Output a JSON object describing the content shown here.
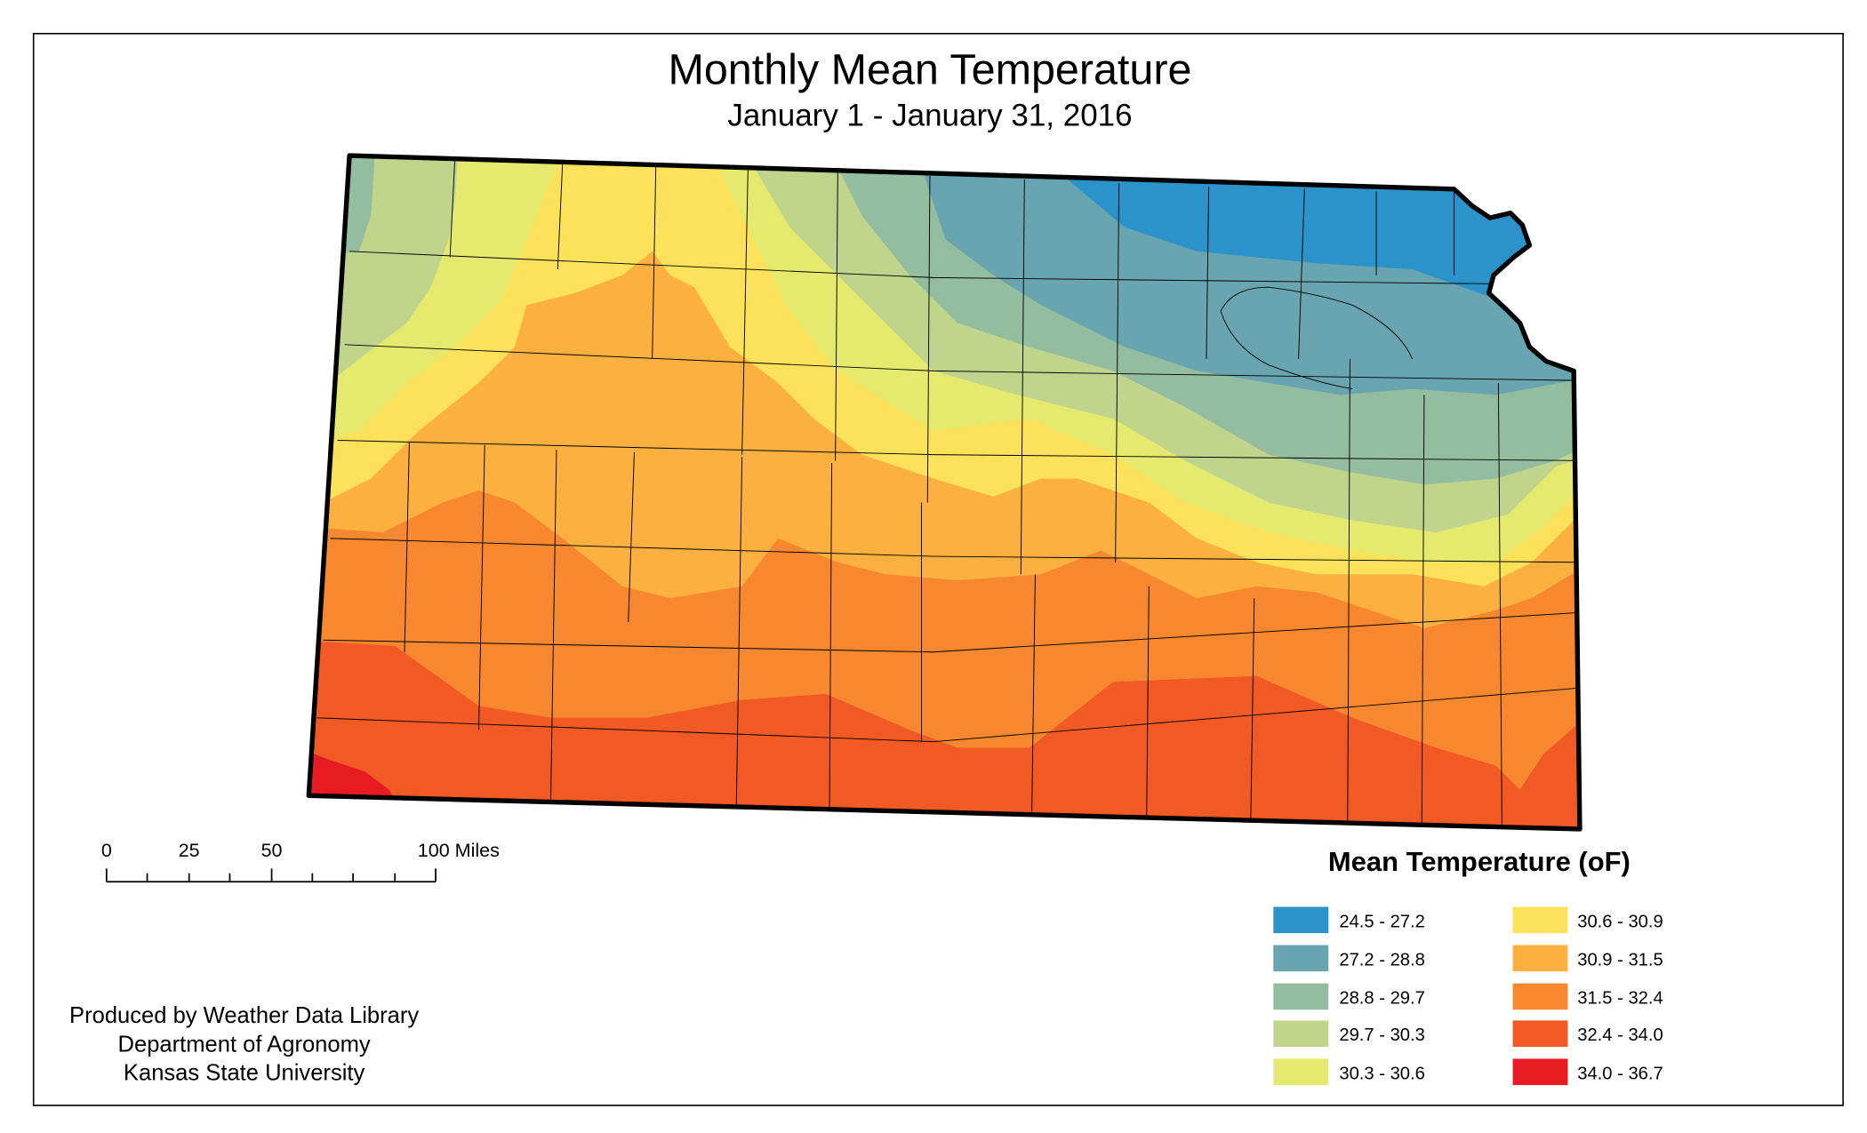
{
  "title": "Monthly Mean Temperature",
  "subtitle": "January 1 - January 31, 2016",
  "legend": {
    "title": "Mean Temperature (oF)",
    "items": [
      {
        "label": "24.5 - 27.2",
        "color": "#2B93C9"
      },
      {
        "label": "27.2 - 28.8",
        "color": "#68A5B0"
      },
      {
        "label": "28.8 - 29.7",
        "color": "#93BD9E"
      },
      {
        "label": "29.7 - 30.3",
        "color": "#C0D48C"
      },
      {
        "label": "30.3 - 30.6",
        "color": "#E5EA6E"
      },
      {
        "label": "30.6 - 30.9",
        "color": "#FCE25A"
      },
      {
        "label": "30.9 - 31.5",
        "color": "#FBB040"
      },
      {
        "label": "31.5 - 32.4",
        "color": "#F7882F"
      },
      {
        "label": "32.4 - 34.0",
        "color": "#F15A24"
      },
      {
        "label": "34.0 - 36.7",
        "color": "#E81B23"
      }
    ]
  },
  "scale_bar": {
    "labels": [
      "0",
      "25",
      "50",
      "100 Miles"
    ]
  },
  "credits": [
    "Produced by Weather Data Library",
    "Department of Agronomy",
    "Kansas State University"
  ]
}
